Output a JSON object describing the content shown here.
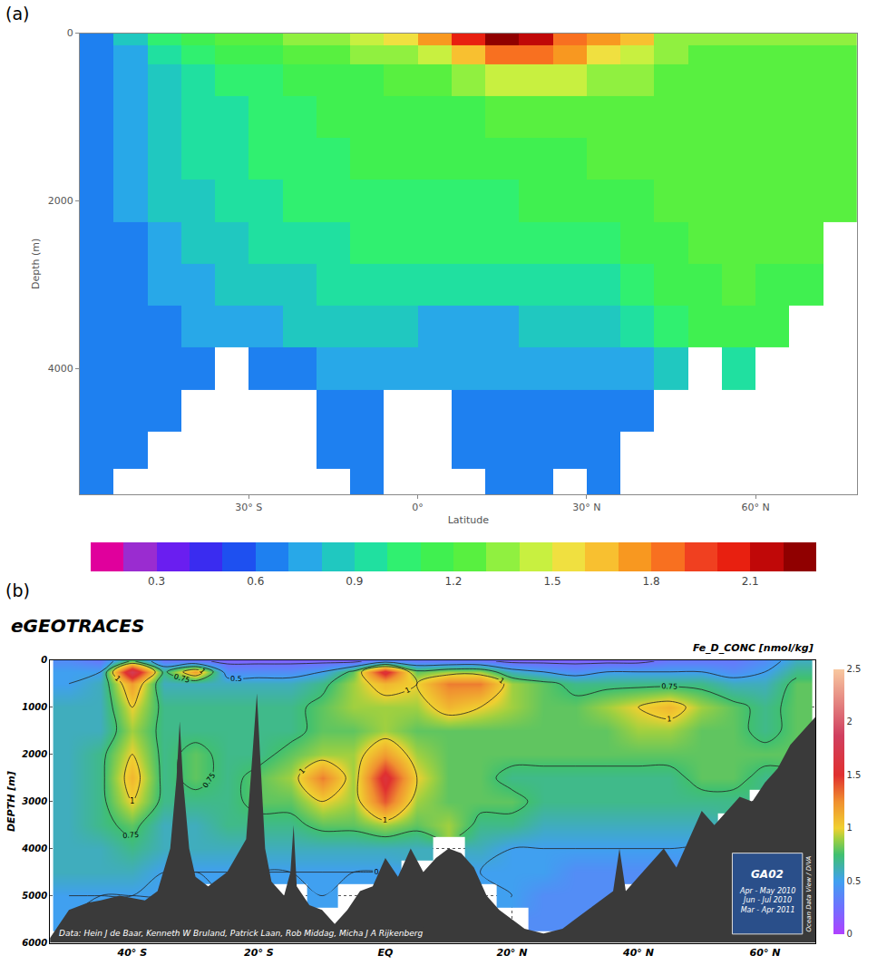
{
  "chart_data": [
    {
      "type": "heatmap",
      "panel_label": "(a)",
      "xlabel": "Latitude",
      "ylabel": "Depth (m)",
      "xlim": [
        -60,
        78
      ],
      "ylim": [
        0,
        5500
      ],
      "grid": false,
      "xticks": [
        {
          "value": -30,
          "label": "30° S"
        },
        {
          "value": 0,
          "label": "0°"
        },
        {
          "value": 30,
          "label": "30° N"
        },
        {
          "value": 60,
          "label": "60° N"
        }
      ],
      "yticks": [
        0,
        2000,
        4000
      ],
      "x": [
        -57,
        -51,
        -45,
        -39,
        -33,
        -27,
        -21,
        -15,
        -9,
        -3,
        3,
        9,
        15,
        21,
        27,
        33,
        39,
        45,
        51,
        57,
        63,
        69,
        75
      ],
      "y": [
        50,
        250,
        500,
        1000,
        1500,
        2000,
        2500,
        3000,
        3500,
        4000,
        4500,
        5000,
        5400
      ],
      "z": [
        [
          0.6,
          0.8,
          1.0,
          1.1,
          1.2,
          1.2,
          1.3,
          1.3,
          1.4,
          1.5,
          1.7,
          2.0,
          2.2,
          2.1,
          1.8,
          1.7,
          1.6,
          1.3,
          1.3,
          1.3,
          1.3,
          1.3,
          1.3
        ],
        [
          0.6,
          0.7,
          0.9,
          1.0,
          1.1,
          1.1,
          1.2,
          1.2,
          1.3,
          1.3,
          1.4,
          1.6,
          1.8,
          1.8,
          1.7,
          1.5,
          1.4,
          1.3,
          1.2,
          1.2,
          1.2,
          1.2,
          1.2
        ],
        [
          0.6,
          0.7,
          0.8,
          0.9,
          1.0,
          1.0,
          1.1,
          1.1,
          1.1,
          1.2,
          1.2,
          1.3,
          1.4,
          1.4,
          1.4,
          1.3,
          1.3,
          1.2,
          1.2,
          1.2,
          1.2,
          1.2,
          1.2
        ],
        [
          0.6,
          0.7,
          0.8,
          0.9,
          0.9,
          1.0,
          1.0,
          1.1,
          1.1,
          1.1,
          1.1,
          1.1,
          1.2,
          1.2,
          1.2,
          1.2,
          1.2,
          1.2,
          1.2,
          1.2,
          1.2,
          1.2,
          1.2
        ],
        [
          0.6,
          0.7,
          0.8,
          0.9,
          0.9,
          1.0,
          1.0,
          1.0,
          1.1,
          1.1,
          1.1,
          1.1,
          1.1,
          1.1,
          1.1,
          1.2,
          1.2,
          1.2,
          1.2,
          1.2,
          1.2,
          1.2,
          1.2
        ],
        [
          0.6,
          0.7,
          0.8,
          0.8,
          0.9,
          0.9,
          1.0,
          1.0,
          1.0,
          1.0,
          1.0,
          1.0,
          1.0,
          1.1,
          1.1,
          1.1,
          1.1,
          1.2,
          1.2,
          1.2,
          1.2,
          1.2,
          1.2
        ],
        [
          0.6,
          0.6,
          0.7,
          0.8,
          0.8,
          0.9,
          0.9,
          0.9,
          1.0,
          1.0,
          1.0,
          1.0,
          1.0,
          1.0,
          1.0,
          1.0,
          1.1,
          1.1,
          1.2,
          1.2,
          1.2,
          1.2,
          null
        ],
        [
          0.6,
          0.6,
          0.7,
          0.7,
          0.8,
          0.8,
          0.8,
          0.9,
          0.9,
          0.9,
          0.9,
          0.9,
          0.9,
          0.9,
          0.9,
          0.9,
          1.0,
          1.1,
          1.1,
          1.2,
          1.1,
          1.1,
          null
        ],
        [
          0.6,
          0.6,
          0.6,
          0.7,
          0.7,
          0.7,
          0.8,
          0.8,
          0.8,
          0.8,
          0.7,
          0.7,
          0.7,
          0.8,
          0.8,
          0.8,
          0.9,
          1.0,
          1.1,
          1.1,
          1.1,
          null,
          null
        ],
        [
          0.6,
          0.6,
          0.6,
          0.6,
          null,
          0.6,
          0.6,
          0.7,
          0.7,
          0.7,
          0.7,
          0.7,
          0.7,
          0.7,
          0.7,
          0.7,
          0.7,
          0.8,
          null,
          0.9,
          null,
          null,
          null
        ],
        [
          0.6,
          0.6,
          0.6,
          null,
          null,
          null,
          null,
          0.6,
          0.6,
          null,
          null,
          0.6,
          0.6,
          0.6,
          0.6,
          0.6,
          0.6,
          null,
          null,
          null,
          null,
          null,
          null
        ],
        [
          0.6,
          0.6,
          null,
          null,
          null,
          null,
          null,
          0.6,
          0.6,
          null,
          null,
          0.6,
          0.6,
          0.6,
          0.6,
          0.6,
          null,
          null,
          null,
          null,
          null,
          null,
          null
        ],
        [
          0.6,
          null,
          null,
          null,
          null,
          null,
          null,
          null,
          0.6,
          null,
          null,
          null,
          0.6,
          0.6,
          null,
          0.6,
          null,
          null,
          null,
          null,
          null,
          null,
          null
        ]
      ],
      "colorbar": {
        "range": [
          0.1,
          2.3
        ],
        "ticks": [
          0.3,
          0.6,
          0.9,
          1.2,
          1.5,
          1.8,
          2.1
        ]
      }
    },
    {
      "type": "heatmap",
      "panel_label": "(b)",
      "title": "eGEOTRACES",
      "subtitle": "Fe_D_CONC [nmol/kg]",
      "ylabel": "DEPTH [m]",
      "xlim": [
        -53,
        68
      ],
      "ylim": [
        0,
        6000
      ],
      "grid": true,
      "xticks": [
        {
          "value": -40,
          "label": "40° S"
        },
        {
          "value": -20,
          "label": "20° S"
        },
        {
          "value": 0,
          "label": "EQ"
        },
        {
          "value": 20,
          "label": "20° N"
        },
        {
          "value": 40,
          "label": "40° N"
        },
        {
          "value": 60,
          "label": "60° N"
        }
      ],
      "yticks": [
        0,
        1000,
        2000,
        3000,
        4000,
        5000,
        6000
      ],
      "x": [
        -50,
        -45,
        -40,
        -35,
        -30,
        -25,
        -20,
        -15,
        -10,
        -5,
        0,
        5,
        10,
        15,
        20,
        25,
        30,
        35,
        40,
        45,
        50,
        55,
        60,
        65
      ],
      "y": [
        25,
        250,
        500,
        1000,
        1500,
        2000,
        2500,
        3000,
        3500,
        4000,
        4500,
        5000,
        5500
      ],
      "z": [
        [
          0.4,
          0.3,
          0.8,
          0.3,
          0.3,
          0.2,
          0.2,
          0.2,
          0.2,
          0.2,
          0.4,
          0.3,
          0.3,
          0.3,
          0.2,
          0.2,
          0.2,
          0.2,
          0.2,
          0.3,
          0.3,
          0.3,
          0.4,
          0.6
        ],
        [
          0.5,
          0.5,
          1.8,
          0.7,
          1.2,
          0.4,
          0.4,
          0.4,
          0.5,
          0.8,
          1.6,
          0.8,
          0.9,
          0.9,
          0.6,
          0.5,
          0.4,
          0.5,
          0.5,
          0.5,
          0.5,
          0.4,
          0.5,
          0.7
        ],
        [
          0.5,
          0.6,
          1.2,
          0.6,
          0.6,
          0.6,
          0.6,
          0.6,
          0.7,
          0.9,
          1.1,
          1.0,
          1.3,
          1.3,
          0.9,
          0.8,
          0.7,
          0.7,
          0.7,
          0.7,
          0.7,
          0.6,
          0.6,
          0.8
        ],
        [
          0.6,
          0.6,
          1.0,
          0.7,
          0.7,
          0.7,
          0.7,
          0.7,
          0.8,
          0.9,
          0.9,
          0.9,
          1.1,
          1.0,
          0.9,
          0.8,
          0.8,
          0.9,
          1.0,
          1.1,
          0.9,
          0.8,
          0.7,
          0.8
        ],
        [
          0.6,
          0.6,
          0.9,
          0.7,
          0.7,
          0.7,
          0.7,
          0.7,
          0.8,
          0.8,
          0.9,
          0.8,
          0.8,
          0.8,
          0.8,
          0.8,
          0.8,
          0.8,
          0.9,
          0.9,
          0.8,
          0.8,
          0.7,
          0.8
        ],
        [
          0.6,
          0.7,
          1.0,
          0.7,
          0.8,
          0.7,
          0.7,
          0.8,
          0.9,
          0.9,
          1.2,
          0.9,
          0.8,
          0.8,
          0.8,
          0.8,
          0.8,
          0.8,
          0.8,
          0.8,
          0.8,
          0.8,
          0.8,
          0.8
        ],
        [
          0.6,
          0.7,
          1.1,
          0.7,
          0.8,
          0.7,
          0.8,
          0.9,
          1.3,
          0.9,
          1.6,
          1.0,
          0.8,
          0.8,
          0.7,
          0.7,
          0.7,
          0.7,
          0.7,
          0.7,
          0.8,
          0.8,
          0.7,
          null
        ],
        [
          0.6,
          0.7,
          1.0,
          0.7,
          0.7,
          0.7,
          0.8,
          0.8,
          1.0,
          0.9,
          1.4,
          0.9,
          0.8,
          0.8,
          0.8,
          0.7,
          0.7,
          0.7,
          0.7,
          0.7,
          0.7,
          0.7,
          null,
          null
        ],
        [
          0.6,
          0.7,
          0.8,
          0.6,
          0.6,
          0.7,
          0.7,
          0.7,
          0.8,
          0.8,
          0.9,
          0.8,
          0.9,
          0.7,
          0.7,
          0.6,
          0.6,
          0.6,
          0.6,
          0.6,
          0.6,
          null,
          null,
          null
        ],
        [
          0.6,
          0.6,
          0.7,
          0.6,
          0.6,
          0.6,
          0.6,
          0.6,
          0.6,
          0.6,
          0.6,
          0.6,
          null,
          0.6,
          0.5,
          0.5,
          0.5,
          0.5,
          0.5,
          0.5,
          0.5,
          null,
          null,
          null
        ],
        [
          0.6,
          0.6,
          0.6,
          0.5,
          0.5,
          0.5,
          0.5,
          0.5,
          0.5,
          0.5,
          0.5,
          null,
          null,
          0.5,
          0.5,
          0.5,
          0.4,
          0.4,
          0.4,
          0.4,
          null,
          null,
          null,
          null
        ],
        [
          0.5,
          0.5,
          0.5,
          0.5,
          null,
          0.5,
          null,
          null,
          0.5,
          null,
          null,
          null,
          null,
          null,
          0.5,
          0.4,
          0.4,
          0.4,
          null,
          null,
          null,
          null,
          null,
          null
        ],
        [
          0.5,
          null,
          null,
          null,
          null,
          null,
          null,
          null,
          null,
          null,
          null,
          null,
          null,
          null,
          null,
          0.4,
          0.4,
          null,
          null,
          null,
          null,
          null,
          null,
          null
        ]
      ],
      "contours": [
        0.25,
        0.5,
        0.75,
        1
      ],
      "colorbar": {
        "range": [
          0,
          2.5
        ],
        "ticks": [
          0,
          0.5,
          1,
          1.5,
          2,
          2.5
        ]
      },
      "bathymetry": {
        "x": [
          -53,
          -50,
          -47,
          -45,
          -42,
          -40,
          -38,
          -36,
          -34,
          -33,
          -32.5,
          -32,
          -31,
          -30,
          -28,
          -25,
          -22,
          -21,
          -20.3,
          -19.8,
          -19,
          -18,
          -16,
          -15,
          -14.5,
          -14,
          -12,
          -10,
          -8,
          -6,
          -4,
          -2,
          0,
          2,
          4,
          6,
          8,
          10,
          12,
          14,
          16,
          18,
          20,
          22,
          25,
          28,
          30,
          32,
          34,
          36,
          37,
          38,
          40,
          42,
          44,
          46,
          48,
          50,
          52,
          54,
          56,
          58,
          60,
          62,
          64,
          66,
          68
        ],
        "depth": [
          5900,
          5300,
          5150,
          5100,
          5000,
          5050,
          5100,
          4900,
          4000,
          2500,
          1300,
          2500,
          4000,
          4600,
          4800,
          4500,
          3800,
          2000,
          700,
          2000,
          4000,
          4700,
          5000,
          4500,
          3500,
          4800,
          5200,
          5300,
          5600,
          5300,
          4900,
          4800,
          4200,
          4600,
          4000,
          4500,
          4200,
          4000,
          4100,
          4400,
          5000,
          5300,
          5500,
          5700,
          5800,
          5700,
          5500,
          5300,
          5100,
          4900,
          4000,
          4900,
          4600,
          4300,
          4000,
          4400,
          3800,
          3200,
          3500,
          3200,
          2900,
          3000,
          2600,
          2300,
          1800,
          1500,
          1200
        ]
      },
      "annotations": {
        "credit": "Data: Hein J de Baar, Kenneth W Bruland, Patrick Laan, Rob Middag, Micha J A Rijkenberg",
        "inset": "GA02",
        "inset_dates": [
          "Apr - May 2010",
          "Jun - Jul 2010",
          "Mar - Apr 2011"
        ],
        "software": "Ocean Data View / DIVA"
      }
    }
  ]
}
